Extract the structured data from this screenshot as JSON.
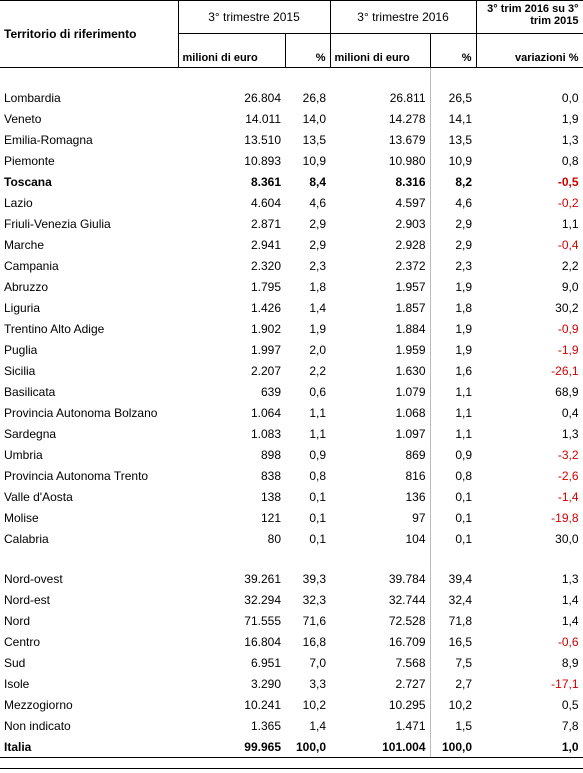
{
  "table": {
    "header": {
      "territory": "Territorio di riferimento",
      "period1": "3° trimestre 2015",
      "period2": "3° trimestre 2016",
      "change": "3° trim 2016 su 3° trim 2015",
      "sub": [
        "milioni di euro",
        "%",
        "milioni di euro",
        "%",
        "variazioni %"
      ]
    },
    "groups": [
      [
        {
          "cells": [
            "Lombardia",
            "26.804",
            "26,8",
            "26.811",
            "26,5",
            "0,0"
          ]
        },
        {
          "cells": [
            "Veneto",
            "14.011",
            "14,0",
            "14.278",
            "14,1",
            "1,9"
          ]
        },
        {
          "cells": [
            "Emilia-Romagna",
            "13.510",
            "13,5",
            "13.679",
            "13,5",
            "1,3"
          ]
        },
        {
          "cells": [
            "Piemonte",
            "10.893",
            "10,9",
            "10.980",
            "10,9",
            "0,8"
          ]
        },
        {
          "cells": [
            "Toscana",
            "8.361",
            "8,4",
            "8.316",
            "8,2",
            "-0,5"
          ],
          "bold": true
        },
        {
          "cells": [
            "Lazio",
            "4.604",
            "4,6",
            "4.597",
            "4,6",
            "-0,2"
          ]
        },
        {
          "cells": [
            "Friuli-Venezia Giulia",
            "2.871",
            "2,9",
            "2.903",
            "2,9",
            "1,1"
          ]
        },
        {
          "cells": [
            "Marche",
            "2.941",
            "2,9",
            "2.928",
            "2,9",
            "-0,4"
          ]
        },
        {
          "cells": [
            "Campania",
            "2.320",
            "2,3",
            "2.372",
            "2,3",
            "2,2"
          ]
        },
        {
          "cells": [
            "Abruzzo",
            "1.795",
            "1,8",
            "1.957",
            "1,9",
            "9,0"
          ]
        },
        {
          "cells": [
            "Liguria",
            "1.426",
            "1,4",
            "1.857",
            "1,8",
            "30,2"
          ]
        },
        {
          "cells": [
            "Trentino Alto Adige",
            "1.902",
            "1,9",
            "1.884",
            "1,9",
            "-0,9"
          ]
        },
        {
          "cells": [
            "Puglia",
            "1.997",
            "2,0",
            "1.959",
            "1,9",
            "-1,9"
          ]
        },
        {
          "cells": [
            "Sicilia",
            "2.207",
            "2,2",
            "1.630",
            "1,6",
            "-26,1"
          ]
        },
        {
          "cells": [
            "Basilicata",
            "639",
            "0,6",
            "1.079",
            "1,1",
            "68,9"
          ]
        },
        {
          "cells": [
            "Provincia Autonoma Bolzano",
            "1.064",
            "1,1",
            "1.068",
            "1,1",
            "0,4"
          ]
        },
        {
          "cells": [
            "Sardegna",
            "1.083",
            "1,1",
            "1.097",
            "1,1",
            "1,3"
          ]
        },
        {
          "cells": [
            "Umbria",
            "898",
            "0,9",
            "869",
            "0,9",
            "-3,2"
          ]
        },
        {
          "cells": [
            "Provincia Autonoma Trento",
            "838",
            "0,8",
            "816",
            "0,8",
            "-2,6"
          ]
        },
        {
          "cells": [
            "Valle d'Aosta",
            "138",
            "0,1",
            "136",
            "0,1",
            "-1,4"
          ]
        },
        {
          "cells": [
            "Molise",
            "121",
            "0,1",
            "97",
            "0,1",
            "-19,8"
          ]
        },
        {
          "cells": [
            "Calabria",
            "80",
            "0,1",
            "104",
            "0,1",
            "30,0"
          ]
        }
      ],
      [
        {
          "cells": [
            "Nord-ovest",
            "39.261",
            "39,3",
            "39.784",
            "39,4",
            "1,3"
          ]
        },
        {
          "cells": [
            "Nord-est",
            "32.294",
            "32,3",
            "32.744",
            "32,4",
            "1,4"
          ]
        },
        {
          "cells": [
            "Nord",
            "71.555",
            "71,6",
            "72.528",
            "71,8",
            "1,4"
          ]
        },
        {
          "cells": [
            "Centro",
            "16.804",
            "16,8",
            "16.709",
            "16,5",
            "-0,6"
          ]
        },
        {
          "cells": [
            "Sud",
            "6.951",
            "7,0",
            "7.568",
            "7,5",
            "8,9"
          ]
        },
        {
          "cells": [
            "Isole",
            "3.290",
            "3,3",
            "2.727",
            "2,7",
            "-17,1"
          ]
        },
        {
          "cells": [
            "Mezzogiorno",
            "10.241",
            "10,2",
            "10.295",
            "10,2",
            "0,5"
          ]
        },
        {
          "cells": [
            "Non indicato",
            "1.365",
            "1,4",
            "1.471",
            "1,5",
            "7,8"
          ]
        },
        {
          "cells": [
            "Italia",
            "99.965",
            "100,0",
            "101.004",
            "100,0",
            "1,0"
          ],
          "bold": true
        }
      ]
    ]
  }
}
